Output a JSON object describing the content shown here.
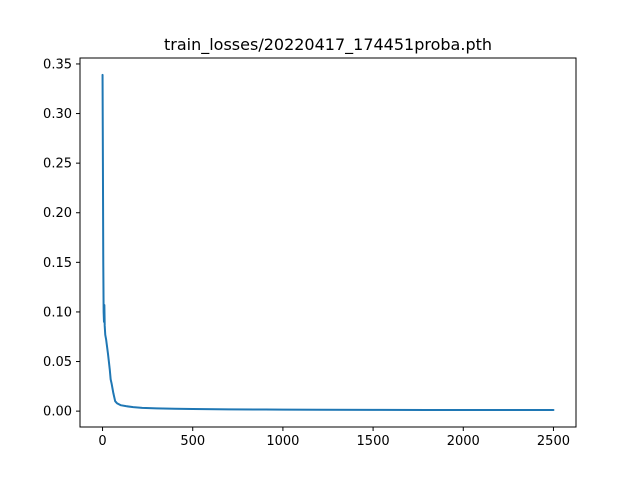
{
  "chart_data": {
    "type": "line",
    "title": "train_losses/20220417_174451proba.pth",
    "xlabel": "",
    "ylabel": "",
    "xlim": [
      -125,
      2625
    ],
    "ylim": [
      -0.016,
      0.356
    ],
    "xticks": [
      0,
      500,
      1000,
      1500,
      2000,
      2500
    ],
    "xtick_labels": [
      "0",
      "500",
      "1000",
      "1500",
      "2000",
      "2500"
    ],
    "yticks": [
      0.0,
      0.05,
      0.1,
      0.15,
      0.2,
      0.25,
      0.3,
      0.35
    ],
    "ytick_labels": [
      "0.00",
      "0.05",
      "0.10",
      "0.15",
      "0.20",
      "0.25",
      "0.30",
      "0.35"
    ],
    "grid": false,
    "line_color": "#1f77b4",
    "series": [
      {
        "name": "",
        "x": [
          0,
          2,
          4,
          6,
          8,
          10,
          12,
          15,
          20,
          25,
          30,
          35,
          40,
          45,
          50,
          55,
          60,
          70,
          80,
          100,
          130,
          170,
          220,
          300,
          400,
          500,
          700,
          900,
          1000,
          1200,
          1500,
          1800,
          2000,
          2200,
          2400,
          2500
        ],
        "y": [
          0.339,
          0.25,
          0.15,
          0.1,
          0.09,
          0.107,
          0.086,
          0.077,
          0.072,
          0.065,
          0.058,
          0.05,
          0.042,
          0.032,
          0.028,
          0.023,
          0.018,
          0.01,
          0.008,
          0.006,
          0.005,
          0.004,
          0.0033,
          0.0028,
          0.0024,
          0.0021,
          0.0018,
          0.0016,
          0.0015,
          0.0014,
          0.0013,
          0.0012,
          0.0012,
          0.0011,
          0.0011,
          0.0011
        ]
      }
    ]
  }
}
